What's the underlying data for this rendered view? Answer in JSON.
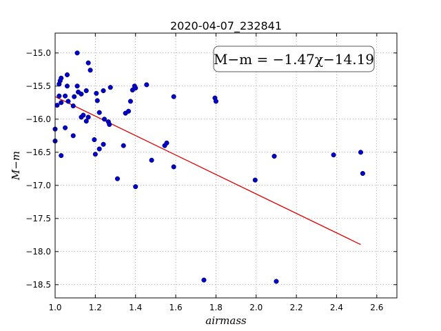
{
  "chart_data": {
    "type": "scatter",
    "title": "2020-04-07_232841",
    "xlabel": "airmass",
    "ylabel": "M−m",
    "xlim": [
      1.0,
      2.7
    ],
    "ylim": [
      -18.7,
      -14.7
    ],
    "y_inverted": true,
    "grid": true,
    "x_ticks": [
      1.0,
      1.2,
      1.4,
      1.6,
      1.8,
      2.0,
      2.2,
      2.4,
      2.6
    ],
    "x_tick_labels": [
      "1.0",
      "1.2",
      "1.4",
      "1.6",
      "1.8",
      "2.0",
      "2.2",
      "2.4",
      "2.6"
    ],
    "y_ticks": [
      -15.0,
      -15.5,
      -16.0,
      -16.5,
      -17.0,
      -17.5,
      -18.0,
      -18.5
    ],
    "y_tick_labels": [
      "−15.0",
      "−15.5",
      "−16.0",
      "−16.5",
      "−17.0",
      "−17.5",
      "−18.0",
      "−18.5"
    ],
    "annotation": "M−m = −1.47χ−14.19",
    "annotation_position": "top-right",
    "marker_color": "#0000cc",
    "fit_color": "#dd0000",
    "fit_line": {
      "slope": -1.47,
      "intercept": -14.19,
      "x_range": [
        1.0,
        2.52
      ]
    },
    "points": [
      {
        "x": 1.0,
        "y": -16.15
      },
      {
        "x": 1.0,
        "y": -16.33
      },
      {
        "x": 1.01,
        "y": -15.79
      },
      {
        "x": 1.02,
        "y": -15.47
      },
      {
        "x": 1.02,
        "y": -15.65
      },
      {
        "x": 1.025,
        "y": -15.42
      },
      {
        "x": 1.03,
        "y": -15.38
      },
      {
        "x": 1.03,
        "y": -15.75
      },
      {
        "x": 1.03,
        "y": -16.55
      },
      {
        "x": 1.05,
        "y": -15.65
      },
      {
        "x": 1.05,
        "y": -16.13
      },
      {
        "x": 1.06,
        "y": -15.33
      },
      {
        "x": 1.06,
        "y": -15.5
      },
      {
        "x": 1.065,
        "y": -15.73
      },
      {
        "x": 1.09,
        "y": -15.8
      },
      {
        "x": 1.09,
        "y": -16.25
      },
      {
        "x": 1.095,
        "y": -15.66
      },
      {
        "x": 1.11,
        "y": -15.0
      },
      {
        "x": 1.11,
        "y": -15.5
      },
      {
        "x": 1.115,
        "y": -15.59
      },
      {
        "x": 1.13,
        "y": -15.62
      },
      {
        "x": 1.13,
        "y": -15.97
      },
      {
        "x": 1.14,
        "y": -15.94
      },
      {
        "x": 1.155,
        "y": -15.57
      },
      {
        "x": 1.155,
        "y": -16.03
      },
      {
        "x": 1.165,
        "y": -15.15
      },
      {
        "x": 1.165,
        "y": -15.97
      },
      {
        "x": 1.175,
        "y": -15.26
      },
      {
        "x": 1.195,
        "y": -16.31
      },
      {
        "x": 1.2,
        "y": -16.53
      },
      {
        "x": 1.205,
        "y": -15.61
      },
      {
        "x": 1.21,
        "y": -15.72
      },
      {
        "x": 1.22,
        "y": -15.9
      },
      {
        "x": 1.22,
        "y": -16.45
      },
      {
        "x": 1.24,
        "y": -15.57
      },
      {
        "x": 1.24,
        "y": -16.38
      },
      {
        "x": 1.245,
        "y": -16.0
      },
      {
        "x": 1.265,
        "y": -16.04
      },
      {
        "x": 1.27,
        "y": -16.08
      },
      {
        "x": 1.275,
        "y": -15.52
      },
      {
        "x": 1.31,
        "y": -16.9
      },
      {
        "x": 1.34,
        "y": -16.4
      },
      {
        "x": 1.35,
        "y": -15.91
      },
      {
        "x": 1.365,
        "y": -15.88
      },
      {
        "x": 1.375,
        "y": -15.73
      },
      {
        "x": 1.385,
        "y": -15.56
      },
      {
        "x": 1.395,
        "y": -15.5
      },
      {
        "x": 1.4,
        "y": -15.53
      },
      {
        "x": 1.4,
        "y": -17.02
      },
      {
        "x": 1.455,
        "y": -15.48
      },
      {
        "x": 1.48,
        "y": -16.62
      },
      {
        "x": 1.545,
        "y": -16.4
      },
      {
        "x": 1.555,
        "y": -16.36
      },
      {
        "x": 1.59,
        "y": -15.66
      },
      {
        "x": 1.59,
        "y": -16.72
      },
      {
        "x": 1.74,
        "y": -18.43
      },
      {
        "x": 1.795,
        "y": -15.68
      },
      {
        "x": 1.8,
        "y": -15.73
      },
      {
        "x": 1.995,
        "y": -16.92
      },
      {
        "x": 2.09,
        "y": -16.56
      },
      {
        "x": 2.1,
        "y": -18.45
      },
      {
        "x": 2.385,
        "y": -16.54
      },
      {
        "x": 2.52,
        "y": -16.5
      },
      {
        "x": 2.53,
        "y": -16.82
      }
    ]
  }
}
